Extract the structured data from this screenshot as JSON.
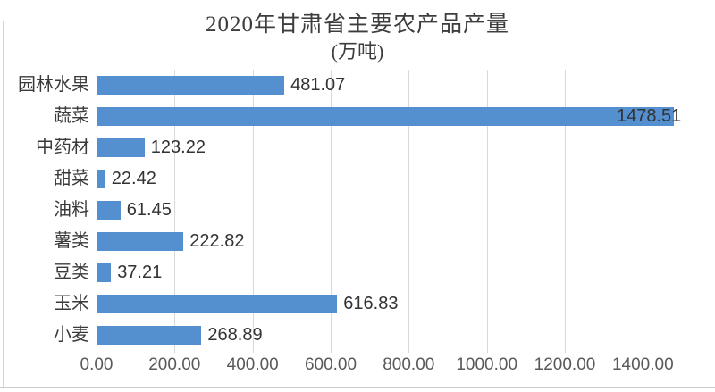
{
  "chart_data": {
    "type": "bar",
    "orientation": "horizontal",
    "title": "2020年甘肃省主要农产品产量",
    "subtitle": "(万吨)",
    "categories": [
      "园林水果",
      "蔬菜",
      "中药材",
      "甜菜",
      "油料",
      "薯类",
      "豆类",
      "玉米",
      "小麦"
    ],
    "values": [
      481.07,
      1478.51,
      123.22,
      22.42,
      61.45,
      222.82,
      37.21,
      616.83,
      268.89
    ],
    "value_labels": [
      "481.07",
      "1478.51",
      "123.22",
      "22.42",
      "61.45",
      "222.82",
      "37.21",
      "616.83",
      "268.89"
    ],
    "x_tick_labels": [
      "0.00",
      "200.00",
      "400.00",
      "600.00",
      "800.00",
      "1000.00",
      "1200.00",
      "1400.00"
    ],
    "x_tick_values": [
      0,
      200,
      400,
      600,
      800,
      1000,
      1200,
      1400
    ],
    "xlim": [
      0,
      1500
    ],
    "grid": true,
    "legend_position": "none",
    "colors": {
      "bar": "#5490d0",
      "gridline": "#d9d9d9",
      "title_text": "#3d3d3d",
      "category_text": "#3a3a3a",
      "value_text": "#333333",
      "tick_text": "#595959"
    }
  }
}
